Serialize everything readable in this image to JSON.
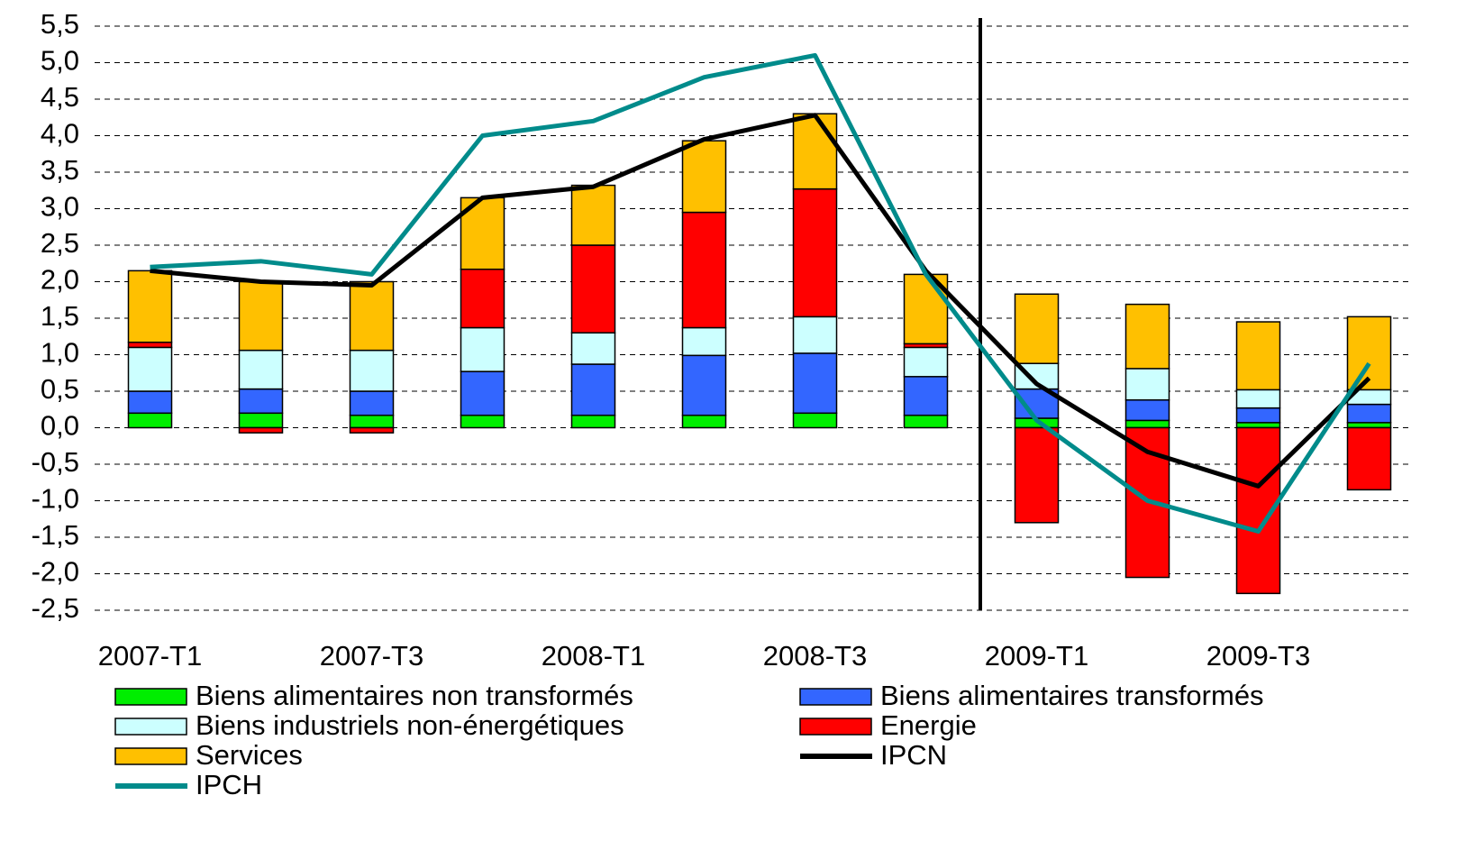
{
  "chart_data": {
    "type": "bar",
    "stacked": true,
    "categories": [
      "2007-T1",
      null,
      "2007-T3",
      null,
      "2008-T1",
      null,
      "2008-T3",
      null,
      "2009-T1",
      null,
      "2009-T3",
      null
    ],
    "series": [
      {
        "name": "Biens alimentaires non transformés",
        "type": "bar",
        "color": "#00ee00",
        "values": [
          0.2,
          0.2,
          0.17,
          0.17,
          0.17,
          0.17,
          0.2,
          0.17,
          0.13,
          0.1,
          0.07,
          0.07
        ]
      },
      {
        "name": "Biens alimentaires transformés",
        "type": "bar",
        "color": "#3366ff",
        "values": [
          0.3,
          0.33,
          0.33,
          0.6,
          0.7,
          0.82,
          0.82,
          0.53,
          0.4,
          0.28,
          0.2,
          0.25
        ]
      },
      {
        "name": "Biens industriels non-énergétiques",
        "type": "bar",
        "color": "#ccffff",
        "values": [
          0.6,
          0.53,
          0.56,
          0.6,
          0.43,
          0.38,
          0.5,
          0.4,
          0.35,
          0.43,
          0.25,
          0.2
        ]
      },
      {
        "name": "Energie",
        "type": "bar",
        "color": "#ff0000",
        "values": [
          0.07,
          -0.07,
          -0.07,
          0.8,
          1.2,
          1.58,
          1.75,
          0.05,
          -1.3,
          -2.05,
          -2.27,
          -0.85
        ]
      },
      {
        "name": "Services",
        "type": "bar",
        "color": "#ffc000",
        "values": [
          0.98,
          0.94,
          0.94,
          0.98,
          0.82,
          0.98,
          1.03,
          0.95,
          0.95,
          0.88,
          0.93,
          1.0
        ]
      },
      {
        "name": "IPCN",
        "type": "line",
        "color": "#000000",
        "values": [
          2.15,
          2.0,
          1.95,
          3.15,
          3.3,
          3.95,
          4.28,
          2.15,
          0.6,
          -0.33,
          -0.8,
          0.68
        ]
      },
      {
        "name": "IPCH",
        "type": "line",
        "color": "#008b8b",
        "values": [
          2.2,
          2.28,
          2.1,
          4.0,
          4.2,
          4.8,
          5.1,
          2.1,
          0.1,
          -1.0,
          -1.42,
          0.88
        ]
      }
    ],
    "ylim": [
      -2.5,
      5.5
    ],
    "yticks": [
      {
        "value": -2.5,
        "label": "-2,5"
      },
      {
        "value": -2,
        "label": "-2,0"
      },
      {
        "value": -1.5,
        "label": "-1,5"
      },
      {
        "value": -1,
        "label": "-1,0"
      },
      {
        "value": -0.5,
        "label": "-0,5"
      },
      {
        "value": 0,
        "label": "0,0"
      },
      {
        "value": 0.5,
        "label": "0,5"
      },
      {
        "value": 1,
        "label": "1,0"
      },
      {
        "value": 1.5,
        "label": "1,5"
      },
      {
        "value": 2,
        "label": "2,0"
      },
      {
        "value": 2.5,
        "label": "2,5"
      },
      {
        "value": 3,
        "label": "3,0"
      },
      {
        "value": 3.5,
        "label": "3,5"
      },
      {
        "value": 4,
        "label": "4,0"
      },
      {
        "value": 4.5,
        "label": "4,5"
      },
      {
        "value": 5,
        "label": "5,0"
      },
      {
        "value": 5.5,
        "label": "5,5"
      }
    ],
    "grid": true,
    "legend": "bottom"
  }
}
